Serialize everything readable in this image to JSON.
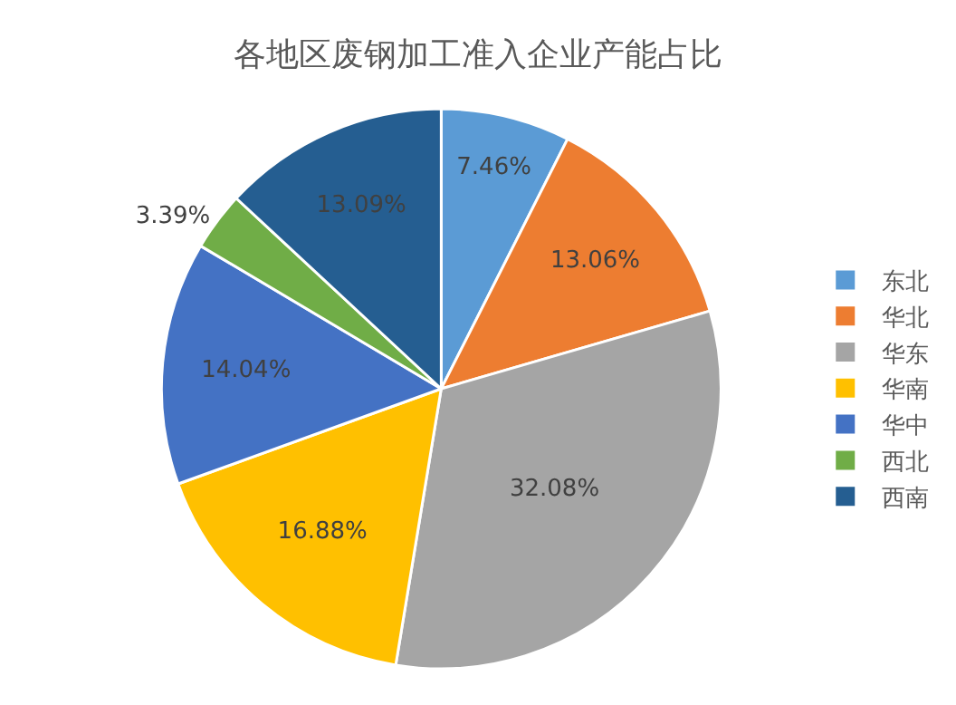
{
  "chart_data": {
    "type": "pie",
    "title": "各地区废钢加工准入企业产能占比",
    "categories": [
      "东北",
      "华北",
      "华东",
      "华南",
      "华中",
      "西北",
      "西南"
    ],
    "values": [
      7.46,
      13.06,
      32.08,
      16.88,
      14.04,
      3.39,
      13.09
    ],
    "value_labels": [
      "7.46%",
      "13.06%",
      "32.08%",
      "16.88%",
      "14.04%",
      "3.39%",
      "13.09%"
    ],
    "colors": [
      "#5b9bd5",
      "#ed7d31",
      "#a5a5a5",
      "#ffc000",
      "#4472c4",
      "#70ad47",
      "#255e91"
    ],
    "legend": "right"
  }
}
